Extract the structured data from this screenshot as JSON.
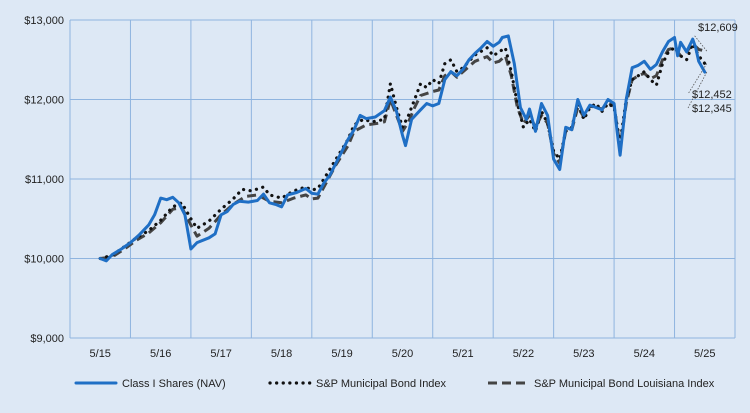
{
  "chart_data": {
    "type": "line",
    "title": "",
    "xlabel": "",
    "ylabel": "",
    "ylim": [
      9000,
      13000
    ],
    "y_ticks": [
      {
        "value": 9000,
        "label": "$9,000"
      },
      {
        "value": 10000,
        "label": "$10,000"
      },
      {
        "value": 11000,
        "label": "$11,000"
      },
      {
        "value": 12000,
        "label": "$12,000"
      },
      {
        "value": 13000,
        "label": "$13,000"
      }
    ],
    "x_ticks": [
      "5/15",
      "5/16",
      "5/17",
      "5/18",
      "5/19",
      "5/20",
      "5/21",
      "5/22",
      "5/23",
      "5/24",
      "5/25"
    ],
    "grid": true,
    "legend_position": "bottom",
    "end_labels": [
      {
        "value": 12609,
        "label": "$12,609",
        "series": 2
      },
      {
        "value": 12452,
        "label": "$12,452",
        "series": 1
      },
      {
        "value": 12345,
        "label": "$12,345",
        "series": 0
      }
    ],
    "series": [
      {
        "name": "Class I Shares (NAV)",
        "color": "#1f6fc5",
        "style": "solid",
        "points": [
          [
            0,
            10000
          ],
          [
            0.1,
            9970
          ],
          [
            0.2,
            10050
          ],
          [
            0.35,
            10120
          ],
          [
            0.5,
            10200
          ],
          [
            0.65,
            10300
          ],
          [
            0.8,
            10420
          ],
          [
            0.9,
            10550
          ],
          [
            1.0,
            10760
          ],
          [
            1.1,
            10740
          ],
          [
            1.2,
            10770
          ],
          [
            1.3,
            10700
          ],
          [
            1.4,
            10550
          ],
          [
            1.5,
            10120
          ],
          [
            1.6,
            10200
          ],
          [
            1.8,
            10260
          ],
          [
            1.9,
            10310
          ],
          [
            2.0,
            10550
          ],
          [
            2.1,
            10590
          ],
          [
            2.2,
            10680
          ],
          [
            2.3,
            10720
          ],
          [
            2.45,
            10710
          ],
          [
            2.6,
            10730
          ],
          [
            2.7,
            10810
          ],
          [
            2.8,
            10700
          ],
          [
            2.9,
            10680
          ],
          [
            3.0,
            10650
          ],
          [
            3.1,
            10800
          ],
          [
            3.25,
            10830
          ],
          [
            3.4,
            10880
          ],
          [
            3.5,
            10820
          ],
          [
            3.6,
            10810
          ],
          [
            3.7,
            10950
          ],
          [
            3.8,
            11050
          ],
          [
            3.9,
            11200
          ],
          [
            4.0,
            11350
          ],
          [
            4.1,
            11500
          ],
          [
            4.2,
            11620
          ],
          [
            4.3,
            11800
          ],
          [
            4.4,
            11760
          ],
          [
            4.55,
            11780
          ],
          [
            4.7,
            11860
          ],
          [
            4.8,
            12030
          ],
          [
            4.9,
            11850
          ],
          [
            5.0,
            11550
          ],
          [
            5.05,
            11420
          ],
          [
            5.15,
            11750
          ],
          [
            5.3,
            11870
          ],
          [
            5.4,
            11950
          ],
          [
            5.5,
            11920
          ],
          [
            5.6,
            11950
          ],
          [
            5.7,
            12250
          ],
          [
            5.8,
            12350
          ],
          [
            5.9,
            12300
          ],
          [
            6.0,
            12380
          ],
          [
            6.1,
            12500
          ],
          [
            6.2,
            12580
          ],
          [
            6.3,
            12650
          ],
          [
            6.4,
            12730
          ],
          [
            6.5,
            12670
          ],
          [
            6.6,
            12720
          ],
          [
            6.65,
            12780
          ],
          [
            6.75,
            12800
          ],
          [
            6.85,
            12450
          ],
          [
            6.95,
            11900
          ],
          [
            7.05,
            11750
          ],
          [
            7.1,
            11880
          ],
          [
            7.2,
            11600
          ],
          [
            7.3,
            11950
          ],
          [
            7.4,
            11800
          ],
          [
            7.5,
            11250
          ],
          [
            7.6,
            11120
          ],
          [
            7.7,
            11650
          ],
          [
            7.8,
            11620
          ],
          [
            7.9,
            12000
          ],
          [
            8.0,
            11800
          ],
          [
            8.1,
            11930
          ],
          [
            8.2,
            11900
          ],
          [
            8.3,
            11870
          ],
          [
            8.4,
            12000
          ],
          [
            8.5,
            11950
          ],
          [
            8.55,
            11600
          ],
          [
            8.6,
            11300
          ],
          [
            8.7,
            12000
          ],
          [
            8.8,
            12400
          ],
          [
            8.9,
            12430
          ],
          [
            9.0,
            12480
          ],
          [
            9.1,
            12380
          ],
          [
            9.2,
            12440
          ],
          [
            9.3,
            12600
          ],
          [
            9.4,
            12730
          ],
          [
            9.5,
            12780
          ],
          [
            9.55,
            12550
          ],
          [
            9.6,
            12720
          ],
          [
            9.7,
            12600
          ],
          [
            9.8,
            12760
          ],
          [
            9.85,
            12650
          ],
          [
            9.9,
            12480
          ],
          [
            10.0,
            12345
          ]
        ]
      },
      {
        "name": "S&P Municipal Bond Index",
        "color": "#111111",
        "style": "dotted",
        "points": [
          [
            0,
            10000
          ],
          [
            0.2,
            10040
          ],
          [
            0.4,
            10150
          ],
          [
            0.6,
            10260
          ],
          [
            0.8,
            10350
          ],
          [
            1.0,
            10480
          ],
          [
            1.2,
            10650
          ],
          [
            1.35,
            10700
          ],
          [
            1.5,
            10500
          ],
          [
            1.6,
            10380
          ],
          [
            1.8,
            10470
          ],
          [
            2.0,
            10620
          ],
          [
            2.2,
            10750
          ],
          [
            2.35,
            10870
          ],
          [
            2.5,
            10850
          ],
          [
            2.7,
            10900
          ],
          [
            2.8,
            10800
          ],
          [
            3.0,
            10760
          ],
          [
            3.2,
            10850
          ],
          [
            3.4,
            10900
          ],
          [
            3.5,
            10860
          ],
          [
            3.6,
            10880
          ],
          [
            3.7,
            11000
          ],
          [
            3.9,
            11250
          ],
          [
            4.1,
            11500
          ],
          [
            4.2,
            11680
          ],
          [
            4.35,
            11750
          ],
          [
            4.5,
            11720
          ],
          [
            4.7,
            11750
          ],
          [
            4.8,
            12200
          ],
          [
            4.9,
            11900
          ],
          [
            5.0,
            11650
          ],
          [
            5.1,
            11800
          ],
          [
            5.2,
            12000
          ],
          [
            5.3,
            12200
          ],
          [
            5.4,
            12150
          ],
          [
            5.5,
            12250
          ],
          [
            5.6,
            12200
          ],
          [
            5.7,
            12450
          ],
          [
            5.8,
            12500
          ],
          [
            5.9,
            12350
          ],
          [
            6.0,
            12400
          ],
          [
            6.2,
            12560
          ],
          [
            6.4,
            12650
          ],
          [
            6.5,
            12550
          ],
          [
            6.6,
            12600
          ],
          [
            6.7,
            12650
          ],
          [
            6.8,
            12350
          ],
          [
            6.9,
            11950
          ],
          [
            7.0,
            11650
          ],
          [
            7.1,
            11750
          ],
          [
            7.2,
            11600
          ],
          [
            7.3,
            11850
          ],
          [
            7.4,
            11700
          ],
          [
            7.5,
            11350
          ],
          [
            7.6,
            11250
          ],
          [
            7.7,
            11600
          ],
          [
            7.8,
            11650
          ],
          [
            7.9,
            11950
          ],
          [
            8.0,
            11750
          ],
          [
            8.1,
            11900
          ],
          [
            8.2,
            11950
          ],
          [
            8.3,
            11850
          ],
          [
            8.4,
            11950
          ],
          [
            8.5,
            11900
          ],
          [
            8.6,
            11450
          ],
          [
            8.7,
            12000
          ],
          [
            8.8,
            12250
          ],
          [
            8.9,
            12300
          ],
          [
            9.0,
            12350
          ],
          [
            9.1,
            12250
          ],
          [
            9.2,
            12180
          ],
          [
            9.3,
            12450
          ],
          [
            9.4,
            12600
          ],
          [
            9.5,
            12650
          ],
          [
            9.6,
            12550
          ],
          [
            9.7,
            12500
          ],
          [
            9.8,
            12700
          ],
          [
            9.9,
            12550
          ],
          [
            10.0,
            12452
          ]
        ]
      },
      {
        "name": "S&P Municipal Bond Louisiana Index",
        "color": "#444444",
        "style": "dashed",
        "points": [
          [
            0,
            10000
          ],
          [
            0.2,
            10020
          ],
          [
            0.4,
            10120
          ],
          [
            0.6,
            10230
          ],
          [
            0.8,
            10320
          ],
          [
            1.0,
            10450
          ],
          [
            1.2,
            10620
          ],
          [
            1.35,
            10640
          ],
          [
            1.5,
            10420
          ],
          [
            1.6,
            10280
          ],
          [
            1.8,
            10380
          ],
          [
            2.0,
            10550
          ],
          [
            2.2,
            10680
          ],
          [
            2.4,
            10780
          ],
          [
            2.6,
            10800
          ],
          [
            2.8,
            10720
          ],
          [
            3.0,
            10700
          ],
          [
            3.2,
            10760
          ],
          [
            3.4,
            10800
          ],
          [
            3.5,
            10750
          ],
          [
            3.6,
            10760
          ],
          [
            3.7,
            10900
          ],
          [
            3.9,
            11180
          ],
          [
            4.1,
            11420
          ],
          [
            4.2,
            11600
          ],
          [
            4.4,
            11680
          ],
          [
            4.6,
            11700
          ],
          [
            4.7,
            11720
          ],
          [
            4.8,
            12000
          ],
          [
            4.9,
            11800
          ],
          [
            5.0,
            11600
          ],
          [
            5.1,
            11720
          ],
          [
            5.2,
            11900
          ],
          [
            5.3,
            12050
          ],
          [
            5.5,
            12100
          ],
          [
            5.6,
            12120
          ],
          [
            5.7,
            12300
          ],
          [
            5.8,
            12350
          ],
          [
            5.9,
            12280
          ],
          [
            6.0,
            12350
          ],
          [
            6.2,
            12480
          ],
          [
            6.4,
            12540
          ],
          [
            6.5,
            12460
          ],
          [
            6.6,
            12480
          ],
          [
            6.7,
            12550
          ],
          [
            6.8,
            12300
          ],
          [
            6.9,
            11900
          ],
          [
            7.0,
            11700
          ],
          [
            7.1,
            11800
          ],
          [
            7.2,
            11650
          ],
          [
            7.3,
            11800
          ],
          [
            7.4,
            11700
          ],
          [
            7.5,
            11320
          ],
          [
            7.6,
            11200
          ],
          [
            7.7,
            11600
          ],
          [
            7.8,
            11620
          ],
          [
            7.9,
            11900
          ],
          [
            8.0,
            11780
          ],
          [
            8.1,
            11920
          ],
          [
            8.2,
            11900
          ],
          [
            8.3,
            11880
          ],
          [
            8.4,
            11960
          ],
          [
            8.5,
            11920
          ],
          [
            8.6,
            11400
          ],
          [
            8.7,
            11950
          ],
          [
            8.8,
            12250
          ],
          [
            8.9,
            12300
          ],
          [
            9.0,
            12330
          ],
          [
            9.1,
            12260
          ],
          [
            9.2,
            12300
          ],
          [
            9.3,
            12500
          ],
          [
            9.4,
            12630
          ],
          [
            9.5,
            12650
          ],
          [
            9.6,
            12550
          ],
          [
            9.7,
            12600
          ],
          [
            9.8,
            12700
          ],
          [
            9.9,
            12630
          ],
          [
            10.0,
            12609
          ]
        ]
      }
    ]
  }
}
